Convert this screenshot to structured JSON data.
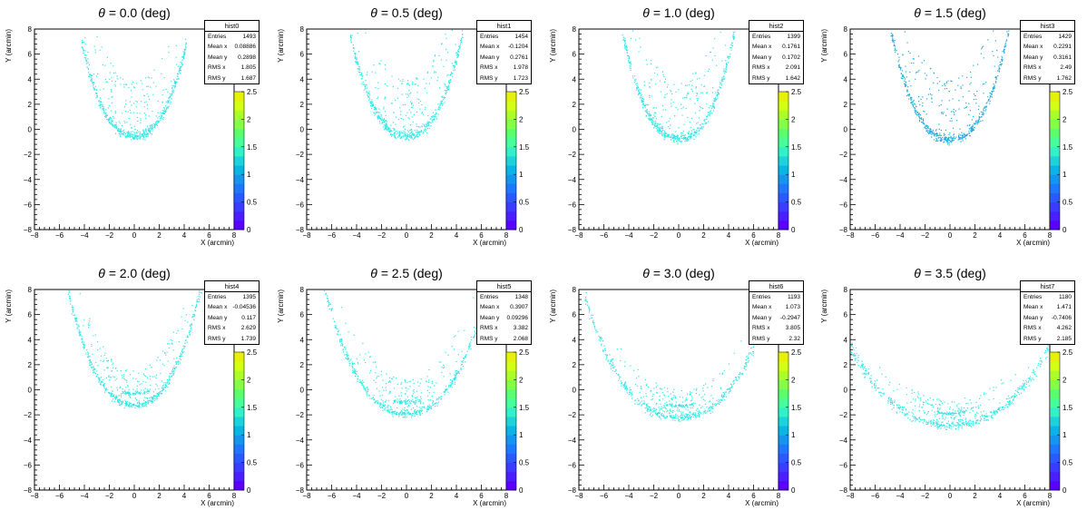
{
  "chart_data": [
    {
      "type": "scatter",
      "panel_title": "θ = 0.0 (deg)",
      "title_prefix": "θ =",
      "title_value": "0.0",
      "title_unit": "(deg)",
      "hist_name": "hist0",
      "xlabel": "X (arcmin)",
      "ylabel": "Y (arcmin)",
      "stats": {
        "Entries": "1493",
        "Mean x": "0.08886",
        "Mean y": "0.2898",
        "RMS x": "1.805",
        "RMS y": "1.687"
      },
      "color": "#33e6e6",
      "arc": {
        "y0": -0.7,
        "curv": 0.42,
        "xmin": -4.2,
        "xmax": 4.2,
        "spread": 0.9,
        "cloud": 4.3
      }
    },
    {
      "type": "scatter",
      "panel_title": "θ = 0.5 (deg)",
      "title_prefix": "θ =",
      "title_value": "0.5",
      "title_unit": "(deg)",
      "hist_name": "hist1",
      "xlabel": "X (arcmin)",
      "ylabel": "Y (arcmin)",
      "stats": {
        "Entries": "1454",
        "Mean x": "-0.1204",
        "Mean y": "0.2761",
        "RMS x": "1.978",
        "RMS y": "1.723"
      },
      "color": "#33e6e6",
      "arc": {
        "y0": -0.7,
        "curv": 0.4,
        "xmin": -4.5,
        "xmax": 4.5,
        "spread": 0.9,
        "cloud": 4.4
      }
    },
    {
      "type": "scatter",
      "panel_title": "θ = 1.0 (deg)",
      "title_prefix": "θ =",
      "title_value": "1.0",
      "title_unit": "(deg)",
      "hist_name": "hist2",
      "xlabel": "X (arcmin)",
      "ylabel": "Y (arcmin)",
      "stats": {
        "Entries": "1399",
        "Mean x": "0.1761",
        "Mean y": "0.1702",
        "RMS x": "2.091",
        "RMS y": "1.642"
      },
      "color": "#33e6e6",
      "arc": {
        "y0": -0.9,
        "curv": 0.42,
        "xmin": -4.5,
        "xmax": 4.5,
        "spread": 0.8,
        "cloud": 4.5
      }
    },
    {
      "type": "scatter",
      "panel_title": "θ = 1.5 (deg)",
      "title_prefix": "θ =",
      "title_value": "1.5",
      "title_unit": "(deg)",
      "hist_name": "hist3",
      "xlabel": "X (arcmin)",
      "ylabel": "Y (arcmin)",
      "stats": {
        "Entries": "1429",
        "Mean x": "0.2291",
        "Mean y": "0.3161",
        "RMS x": "2.49",
        "RMS y": "1.762"
      },
      "color": "#1eaadc",
      "arc": {
        "y0": -1.0,
        "curv": 0.4,
        "xmin": -5.0,
        "xmax": 5.0,
        "spread": 0.7,
        "cloud": 4.6
      }
    },
    {
      "type": "scatter",
      "panel_title": "θ = 2.0 (deg)",
      "title_prefix": "θ =",
      "title_value": "2.0",
      "title_unit": "(deg)",
      "hist_name": "hist4",
      "xlabel": "X (arcmin)",
      "ylabel": "Y (arcmin)",
      "stats": {
        "Entries": "1395",
        "Mean x": "-0.04536",
        "Mean y": "0.117",
        "RMS x": "2.629",
        "RMS y": "1.739"
      },
      "color": "#33e6e6",
      "arc": {
        "y0": -1.3,
        "curv": 0.33,
        "xmin": -5.5,
        "xmax": 5.5,
        "spread": 0.4,
        "cloud": 2.5
      }
    },
    {
      "type": "scatter",
      "panel_title": "θ = 2.5 (deg)",
      "title_prefix": "θ =",
      "title_value": "2.5",
      "title_unit": "(deg)",
      "hist_name": "hist5",
      "xlabel": "X (arcmin)",
      "ylabel": "Y (arcmin)",
      "stats": {
        "Entries": "1348",
        "Mean x": "0.3907",
        "Mean y": "0.09296",
        "RMS x": "3.382",
        "RMS y": "2.068"
      },
      "color": "#33e6e6",
      "arc": {
        "y0": -2.0,
        "curv": 0.24,
        "xmin": -7.0,
        "xmax": 7.0,
        "spread": 0.4,
        "cloud": 2.5
      }
    },
    {
      "type": "scatter",
      "panel_title": "θ = 3.0 (deg)",
      "title_prefix": "θ =",
      "title_value": "3.0",
      "title_unit": "(deg)",
      "hist_name": "hist6",
      "xlabel": "X (arcmin)",
      "ylabel": "Y (arcmin)",
      "stats": {
        "Entries": "1193",
        "Mean x": "1.073",
        "Mean y": "-0.2947",
        "RMS x": "3.805",
        "RMS y": "2.32"
      },
      "color": "#33e6e6",
      "arc": {
        "y0": -2.3,
        "curv": 0.17,
        "xmin": -7.5,
        "xmax": 7.5,
        "spread": 0.4,
        "cloud": 2.0
      }
    },
    {
      "type": "scatter",
      "panel_title": "θ = 3.5 (deg)",
      "title_prefix": "θ =",
      "title_value": "3.5",
      "title_unit": "(deg)",
      "hist_name": "hist7",
      "xlabel": "X (arcmin)",
      "ylabel": "Y (arcmin)",
      "stats": {
        "Entries": "1180",
        "Mean x": "1.471",
        "Mean y": "-0.7406",
        "RMS x": "4.262",
        "RMS y": "2.185"
      },
      "color": "#33e6e6",
      "arc": {
        "y0": -2.9,
        "curv": 0.1,
        "xmin": -8.0,
        "xmax": 8.0,
        "spread": 0.4,
        "cloud": 1.8
      }
    }
  ],
  "shared": {
    "xlim": [
      -8,
      8
    ],
    "ylim": [
      -8,
      8
    ],
    "xticks": [
      -8,
      -6,
      -4,
      -2,
      0,
      2,
      4,
      6,
      8
    ],
    "yticks": [
      -8,
      -6,
      -4,
      -2,
      0,
      2,
      4,
      6,
      8
    ],
    "palette_ticks": [
      "0",
      "0.5",
      "1",
      "1.5",
      "2",
      "2.5"
    ],
    "palette_max": 2.5,
    "palette_colors": [
      "#5a00ff",
      "#4a1eff",
      "#3a3cff",
      "#2a5aff",
      "#1e78ff",
      "#1496f0",
      "#0ab4e6",
      "#1ed2dc",
      "#32f0c8",
      "#46ff9b",
      "#5aff6e",
      "#82ff46",
      "#aaff28",
      "#d2ff14",
      "#e6f00a"
    ],
    "grid": false,
    "stats_box_placement": "top-right",
    "palette_placement": "right"
  }
}
